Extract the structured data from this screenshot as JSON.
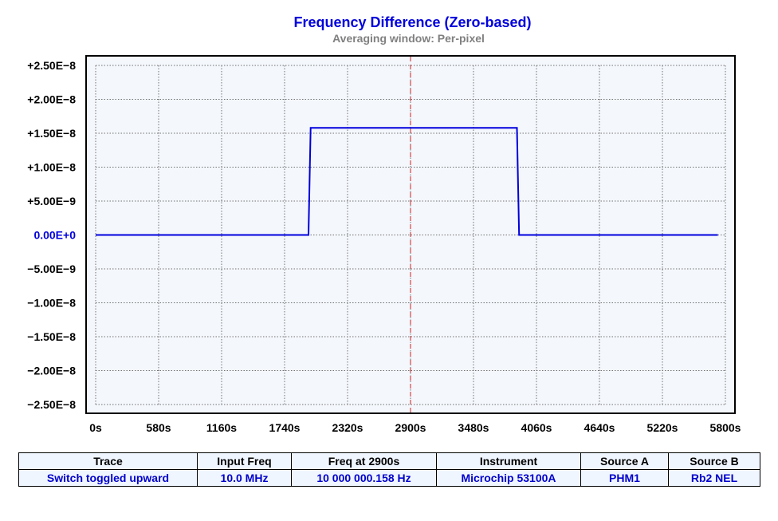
{
  "chart_data": {
    "type": "line",
    "title": "Frequency Difference (Zero-based)",
    "subtitle": "Averaging window: Per-pixel",
    "xlabel": "",
    "ylabel": "",
    "xlim": [
      0,
      5800
    ],
    "ylim": [
      -2.5e-08,
      2.5e-08
    ],
    "grid": true,
    "x_ticks": [
      "0s",
      "580s",
      "1160s",
      "1740s",
      "2320s",
      "2900s",
      "3480s",
      "4060s",
      "4640s",
      "5220s",
      "5800s"
    ],
    "x_tick_values": [
      0,
      580,
      1160,
      1740,
      2320,
      2900,
      3480,
      4060,
      4640,
      5220,
      5800
    ],
    "y_ticks": [
      "+2.50E−8",
      "+2.00E−8",
      "+1.50E−8",
      "+1.00E−8",
      "+5.00E−9",
      "0.00E+0",
      "−5.00E−9",
      "−1.00E−8",
      "−1.50E−8",
      "−2.00E−8",
      "−2.50E−8"
    ],
    "y_tick_values": [
      2.5e-08,
      2e-08,
      1.5e-08,
      1e-08,
      5e-09,
      0,
      -5e-09,
      -1e-08,
      -1.5e-08,
      -2e-08,
      -2.5e-08
    ],
    "series": [
      {
        "x": [
          0,
          1960,
          1980,
          3880,
          3900,
          5730
        ],
        "y": [
          0,
          0,
          1.58e-08,
          1.58e-08,
          0,
          0
        ]
      }
    ],
    "cursor_x": 2900,
    "colors": {
      "series": "#0000dd",
      "cursor": "#cc2222",
      "plot_bg": "#f4f7fc",
      "zero_label": "#0000dd"
    }
  },
  "table": {
    "headers": [
      "Trace",
      "Input Freq",
      "Freq at 2900s",
      "Instrument",
      "Source A",
      "Source B"
    ],
    "row": [
      "Switch toggled upward",
      "10.0 MHz",
      "10 000 000.158 Hz",
      "Microchip 53100A",
      "PHM1",
      "Rb2 NEL"
    ]
  }
}
